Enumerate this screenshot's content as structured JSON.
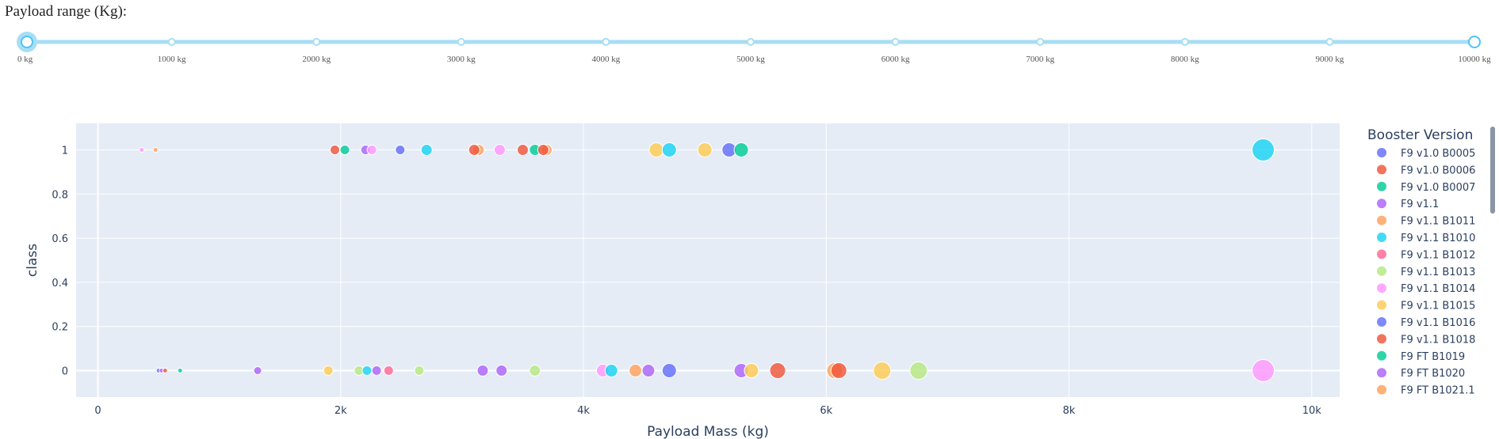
{
  "slider": {
    "label": "Payload range (Kg):",
    "min": 0,
    "max": 10000,
    "value_low": 0,
    "value_high": 10000,
    "ticks": [
      {
        "value": 0,
        "label": "0 kg"
      },
      {
        "value": 1000,
        "label": "1000 kg"
      },
      {
        "value": 2000,
        "label": "2000 kg"
      },
      {
        "value": 3000,
        "label": "3000 kg"
      },
      {
        "value": 4000,
        "label": "4000 kg"
      },
      {
        "value": 5000,
        "label": "5000 kg"
      },
      {
        "value": 6000,
        "label": "6000 kg"
      },
      {
        "value": 7000,
        "label": "7000 kg"
      },
      {
        "value": 8000,
        "label": "8000 kg"
      },
      {
        "value": 9000,
        "label": "9000 kg"
      },
      {
        "value": 10000,
        "label": "10000 kg"
      }
    ],
    "color": "#a7def4",
    "handle_color": "#4fc3f7"
  },
  "chart_data": {
    "type": "scatter",
    "xlabel": "Payload Mass (kg)",
    "ylabel": "class",
    "xlim": [
      -180,
      10230
    ],
    "ylim": [
      -0.12,
      1.12
    ],
    "x_ticks": [
      {
        "v": 0,
        "label": "0"
      },
      {
        "v": 2000,
        "label": "2k"
      },
      {
        "v": 4000,
        "label": "4k"
      },
      {
        "v": 6000,
        "label": "6k"
      },
      {
        "v": 8000,
        "label": "8k"
      },
      {
        "v": 10000,
        "label": "10k"
      }
    ],
    "y_ticks": [
      {
        "v": 0,
        "label": "0"
      },
      {
        "v": 0.2,
        "label": "0.2"
      },
      {
        "v": 0.4,
        "label": "0.4"
      },
      {
        "v": 0.6,
        "label": "0.6"
      },
      {
        "v": 0.8,
        "label": "0.8"
      },
      {
        "v": 1,
        "label": "1"
      }
    ],
    "grid": true,
    "plot_bg": "#e5ecf6",
    "legend": {
      "title": "Booster Version",
      "placement": "right",
      "entries": [
        {
          "name": "F9 v1.0  B0005",
          "color": "#636efa"
        },
        {
          "name": "F9 v1.0  B0006",
          "color": "#ef553b"
        },
        {
          "name": "F9 v1.0  B0007",
          "color": "#00cc96"
        },
        {
          "name": "F9 v1.1",
          "color": "#ab63fa"
        },
        {
          "name": "F9 v1.1 B1011",
          "color": "#ffa15a"
        },
        {
          "name": "F9 v1.1 B1010",
          "color": "#19d3f3"
        },
        {
          "name": "F9 v1.1 B1012",
          "color": "#ff6692"
        },
        {
          "name": "F9 v1.1 B1013",
          "color": "#b6e880"
        },
        {
          "name": "F9 v1.1 B1014",
          "color": "#ff97ff"
        },
        {
          "name": "F9 v1.1 B1015",
          "color": "#fecb52"
        },
        {
          "name": "F9 v1.1 B1016",
          "color": "#636efa"
        },
        {
          "name": "F9 v1.1 B1018",
          "color": "#ef553b"
        },
        {
          "name": "F9 FT B1019",
          "color": "#00cc96"
        },
        {
          "name": "F9 FT B1020",
          "color": "#ab63fa"
        },
        {
          "name": "F9 FT B1021.1",
          "color": "#ffa15a"
        }
      ]
    },
    "points": [
      {
        "x": 360,
        "y": 1,
        "size": 3,
        "color": "#ff97ff"
      },
      {
        "x": 475,
        "y": 1,
        "size": 3,
        "color": "#ffa15a"
      },
      {
        "x": 1952,
        "y": 1,
        "size": 6,
        "color": "#ef553b"
      },
      {
        "x": 2034,
        "y": 1,
        "size": 6,
        "color": "#00cc96"
      },
      {
        "x": 2205,
        "y": 1,
        "size": 6,
        "color": "#ab63fa"
      },
      {
        "x": 2257,
        "y": 1,
        "size": 6,
        "color": "#ff97ff"
      },
      {
        "x": 2490,
        "y": 1,
        "size": 6,
        "color": "#636efa"
      },
      {
        "x": 2708,
        "y": 1,
        "size": 7,
        "color": "#19d3f3"
      },
      {
        "x": 3136,
        "y": 1,
        "size": 7,
        "color": "#ffa15a"
      },
      {
        "x": 3100,
        "y": 1,
        "size": 7,
        "color": "#ef553b"
      },
      {
        "x": 3310,
        "y": 1,
        "size": 7,
        "color": "#ff97ff"
      },
      {
        "x": 3500,
        "y": 1,
        "size": 7,
        "color": "#ef553b"
      },
      {
        "x": 3600,
        "y": 1,
        "size": 7,
        "color": "#00cc96"
      },
      {
        "x": 3696,
        "y": 1,
        "size": 7,
        "color": "#ffa15a"
      },
      {
        "x": 3669,
        "y": 1,
        "size": 7,
        "color": "#ef553b"
      },
      {
        "x": 4600,
        "y": 1,
        "size": 9,
        "color": "#fecb52"
      },
      {
        "x": 4707,
        "y": 1,
        "size": 9,
        "color": "#19d3f3"
      },
      {
        "x": 5000,
        "y": 1,
        "size": 9,
        "color": "#fecb52"
      },
      {
        "x": 5200,
        "y": 1,
        "size": 9,
        "color": "#636efa"
      },
      {
        "x": 5300,
        "y": 1,
        "size": 9,
        "color": "#00cc96"
      },
      {
        "x": 9600,
        "y": 1,
        "size": 14,
        "color": "#19d3f3"
      },
      {
        "x": 500,
        "y": 0,
        "size": 3,
        "color": "#636efa"
      },
      {
        "x": 525,
        "y": 0,
        "size": 3,
        "color": "#ab63fa"
      },
      {
        "x": 553,
        "y": 0,
        "size": 3,
        "color": "#ef553b"
      },
      {
        "x": 677,
        "y": 0,
        "size": 3,
        "color": "#00cc96"
      },
      {
        "x": 1316,
        "y": 0,
        "size": 5,
        "color": "#ab63fa"
      },
      {
        "x": 1898,
        "y": 0,
        "size": 6,
        "color": "#fecb52"
      },
      {
        "x": 2150,
        "y": 0,
        "size": 6,
        "color": "#b6e880"
      },
      {
        "x": 2216,
        "y": 0,
        "size": 6,
        "color": "#19d3f3"
      },
      {
        "x": 2296,
        "y": 0,
        "size": 6,
        "color": "#ab63fa"
      },
      {
        "x": 2395,
        "y": 0,
        "size": 6,
        "color": "#ff6692"
      },
      {
        "x": 2647,
        "y": 0,
        "size": 6,
        "color": "#b6e880"
      },
      {
        "x": 3170,
        "y": 0,
        "size": 7,
        "color": "#ab63fa"
      },
      {
        "x": 3325,
        "y": 0,
        "size": 7,
        "color": "#ab63fa"
      },
      {
        "x": 3600,
        "y": 0,
        "size": 7,
        "color": "#b6e880"
      },
      {
        "x": 4159,
        "y": 0,
        "size": 8,
        "color": "#ff97ff"
      },
      {
        "x": 4230,
        "y": 0,
        "size": 8,
        "color": "#19d3f3"
      },
      {
        "x": 4428,
        "y": 0,
        "size": 8,
        "color": "#ffa15a"
      },
      {
        "x": 4535,
        "y": 0,
        "size": 8,
        "color": "#ab63fa"
      },
      {
        "x": 4707,
        "y": 0,
        "size": 9,
        "color": "#636efa"
      },
      {
        "x": 5300,
        "y": 0,
        "size": 9,
        "color": "#ab63fa"
      },
      {
        "x": 5384,
        "y": 0,
        "size": 9,
        "color": "#fecb52"
      },
      {
        "x": 5600,
        "y": 0,
        "size": 10,
        "color": "#ef553b"
      },
      {
        "x": 6070,
        "y": 0,
        "size": 10,
        "color": "#ffa15a"
      },
      {
        "x": 6104,
        "y": 0,
        "size": 10,
        "color": "#ef553b"
      },
      {
        "x": 6460,
        "y": 0,
        "size": 11,
        "color": "#fecb52"
      },
      {
        "x": 6761,
        "y": 0,
        "size": 11,
        "color": "#b6e880"
      },
      {
        "x": 9600,
        "y": 0,
        "size": 14,
        "color": "#ff97ff"
      }
    ]
  }
}
